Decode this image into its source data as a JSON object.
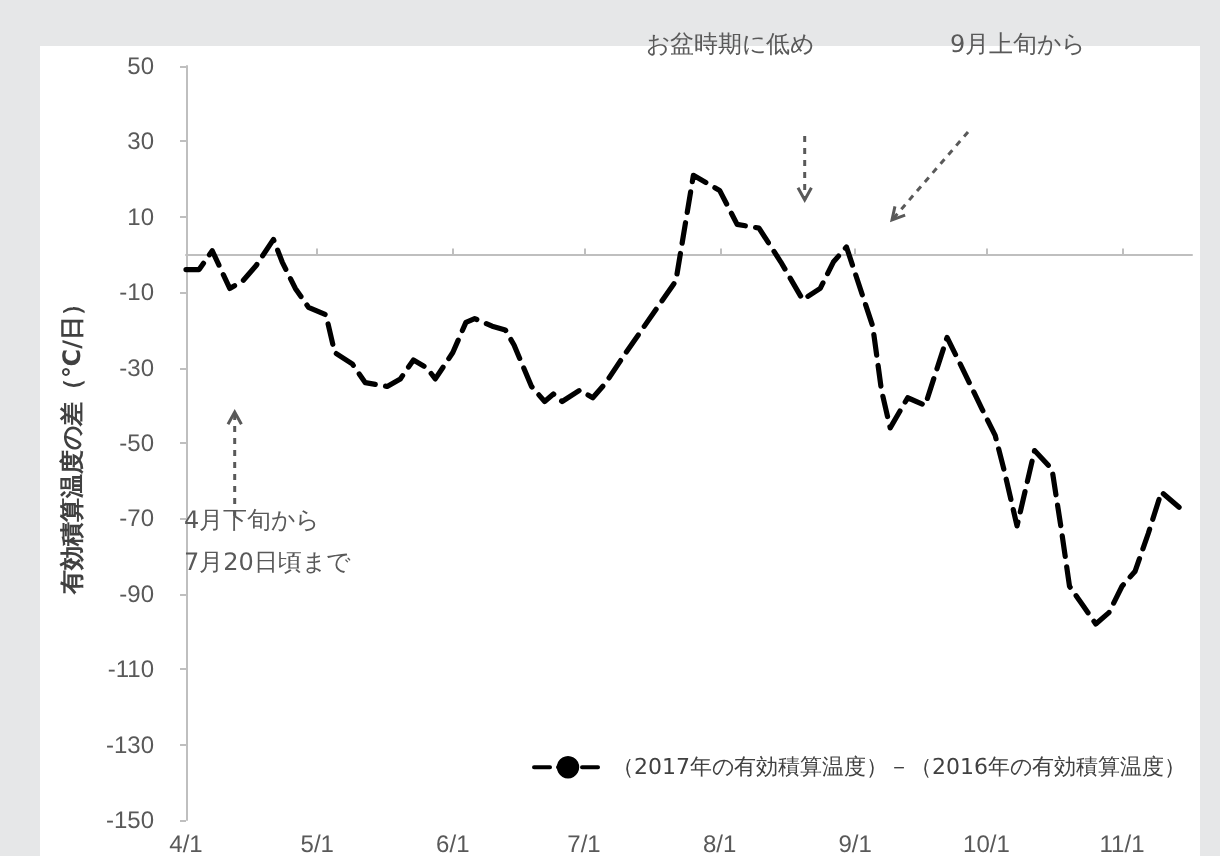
{
  "chart_data": {
    "type": "line",
    "ylabel": "有効積算温度の差（℃/日）",
    "x": [
      "--04-01",
      "--04-04",
      "--04-07",
      "--04-11",
      "--04-14",
      "--04-17",
      "--04-21",
      "--04-23",
      "--04-26",
      "--04-29",
      "--05-03",
      "--05-05",
      "--05-09",
      "--05-12",
      "--05-17",
      "--05-20",
      "--05-23",
      "--05-26",
      "--05-28",
      "--06-01",
      "--06-04",
      "--06-06",
      "--06-10",
      "--06-13",
      "--06-15",
      "--06-19",
      "--06-22",
      "--06-24",
      "--06-26",
      "--06-30",
      "--07-03",
      "--07-06",
      "--07-10",
      "--07-13",
      "--07-19",
      "--07-22",
      "--07-26",
      "--08-01",
      "--08-05",
      "--08-10",
      "--08-15",
      "--08-20",
      "--08-24",
      "--08-27",
      "--08-30",
      "--09-01",
      "--09-05",
      "--09-07",
      "--09-09",
      "--09-13",
      "--09-17",
      "--09-22",
      "--09-25",
      "--09-30",
      "--10-03",
      "--10-05",
      "--10-08",
      "--10-10",
      "--10-12",
      "--10-16",
      "--10-18",
      "--10-20",
      "--10-23",
      "--10-26",
      "--10-29",
      "--11-01",
      "--11-04",
      "--11-07",
      "--11-10",
      "--11-15"
    ],
    "series": [
      {
        "name": "（2017年の有効積算温度）－（2016年の有効積算温度）",
        "color": "#000000",
        "values": [
          -4,
          -4,
          1,
          -9,
          -7,
          -3,
          4,
          -2,
          -9,
          -14,
          -16,
          -26,
          -29,
          -34,
          -35,
          -33,
          -28,
          -30,
          -33,
          -26,
          -18,
          -17,
          -19,
          -20,
          -24,
          -35,
          -39,
          -37,
          -39,
          -36,
          -38,
          -34,
          -27,
          -22,
          -12,
          -7,
          21,
          17,
          8,
          7,
          -2,
          -12,
          -9,
          -2,
          2,
          -5,
          -19,
          -36,
          -46,
          -38,
          -40,
          -22,
          -29,
          -41,
          -48,
          -57,
          -72,
          -62,
          -52,
          -57,
          -72,
          -88,
          -93,
          -98,
          -95,
          -88,
          -84,
          -74,
          -63,
          -68
        ]
      }
    ],
    "xlim": [
      "--04-01",
      "--11-17"
    ],
    "xticks": [
      {
        "value": "--04-01",
        "label": "4/1"
      },
      {
        "value": "--05-01",
        "label": "5/1"
      },
      {
        "value": "--06-01",
        "label": "6/1"
      },
      {
        "value": "--07-01",
        "label": "7/1"
      },
      {
        "value": "--08-01",
        "label": "8/1"
      },
      {
        "value": "--09-01",
        "label": "9/1"
      },
      {
        "value": "--10-01",
        "label": "10/1"
      },
      {
        "value": "--11-01",
        "label": "11/1"
      }
    ],
    "ylim": [
      -150,
      50
    ],
    "yticks": [
      50,
      30,
      10,
      -10,
      -30,
      -50,
      -70,
      -90,
      -110,
      -130,
      -150
    ],
    "annotations": [
      "お盆時期に低め",
      "9月上旬から",
      "4月下旬から\n7月20日頃まで"
    ],
    "legend": "bottom right",
    "grid": false,
    "marker": "none",
    "line_style": "dashed"
  }
}
